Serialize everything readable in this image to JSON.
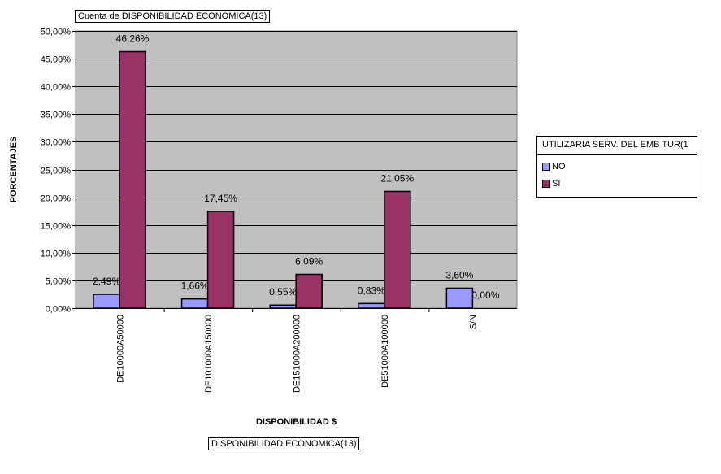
{
  "page_title": "Cuenta de DISPONIBILIDAD ECONOMICA(13)",
  "footer_label": "DISPONIBILIDAD ECONOMICA(13)",
  "colors": {
    "NO": "#9999ff",
    "SI": "#993366",
    "plot_bg": "#c0c0c0"
  },
  "legend": {
    "title": "UTILIZARIA SERV. DEL EMB TUR(1",
    "items": [
      {
        "label": "NO",
        "color": "#9999ff"
      },
      {
        "label": "SI",
        "color": "#993366"
      }
    ]
  },
  "chart_data": {
    "type": "bar",
    "title": "",
    "xlabel": "DISPONIBILIDAD $",
    "ylabel": "PORCENTAJES",
    "ylim": [
      0,
      50
    ],
    "yticks": [
      "0,00%",
      "5,00%",
      "10,00%",
      "15,00%",
      "20,00%",
      "25,00%",
      "30,00%",
      "35,00%",
      "40,00%",
      "45,00%",
      "50,00%"
    ],
    "grid": true,
    "legend_position": "right",
    "categories": [
      "DE10000A50000",
      "DE101000A150000",
      "DE151000A200000",
      "DE51000A100000",
      "S/N"
    ],
    "series": [
      {
        "name": "NO",
        "values": [
          2.49,
          1.66,
          0.55,
          0.83,
          3.6
        ],
        "labels": [
          "2,49%",
          "1,66%",
          "0,55%",
          "0,83%",
          "3,60%"
        ]
      },
      {
        "name": "SI",
        "values": [
          46.26,
          17.45,
          6.09,
          21.05,
          0.0
        ],
        "labels": [
          "46,26%",
          "17,45%",
          "6,09%",
          "21,05%",
          "0,00%"
        ]
      }
    ]
  }
}
